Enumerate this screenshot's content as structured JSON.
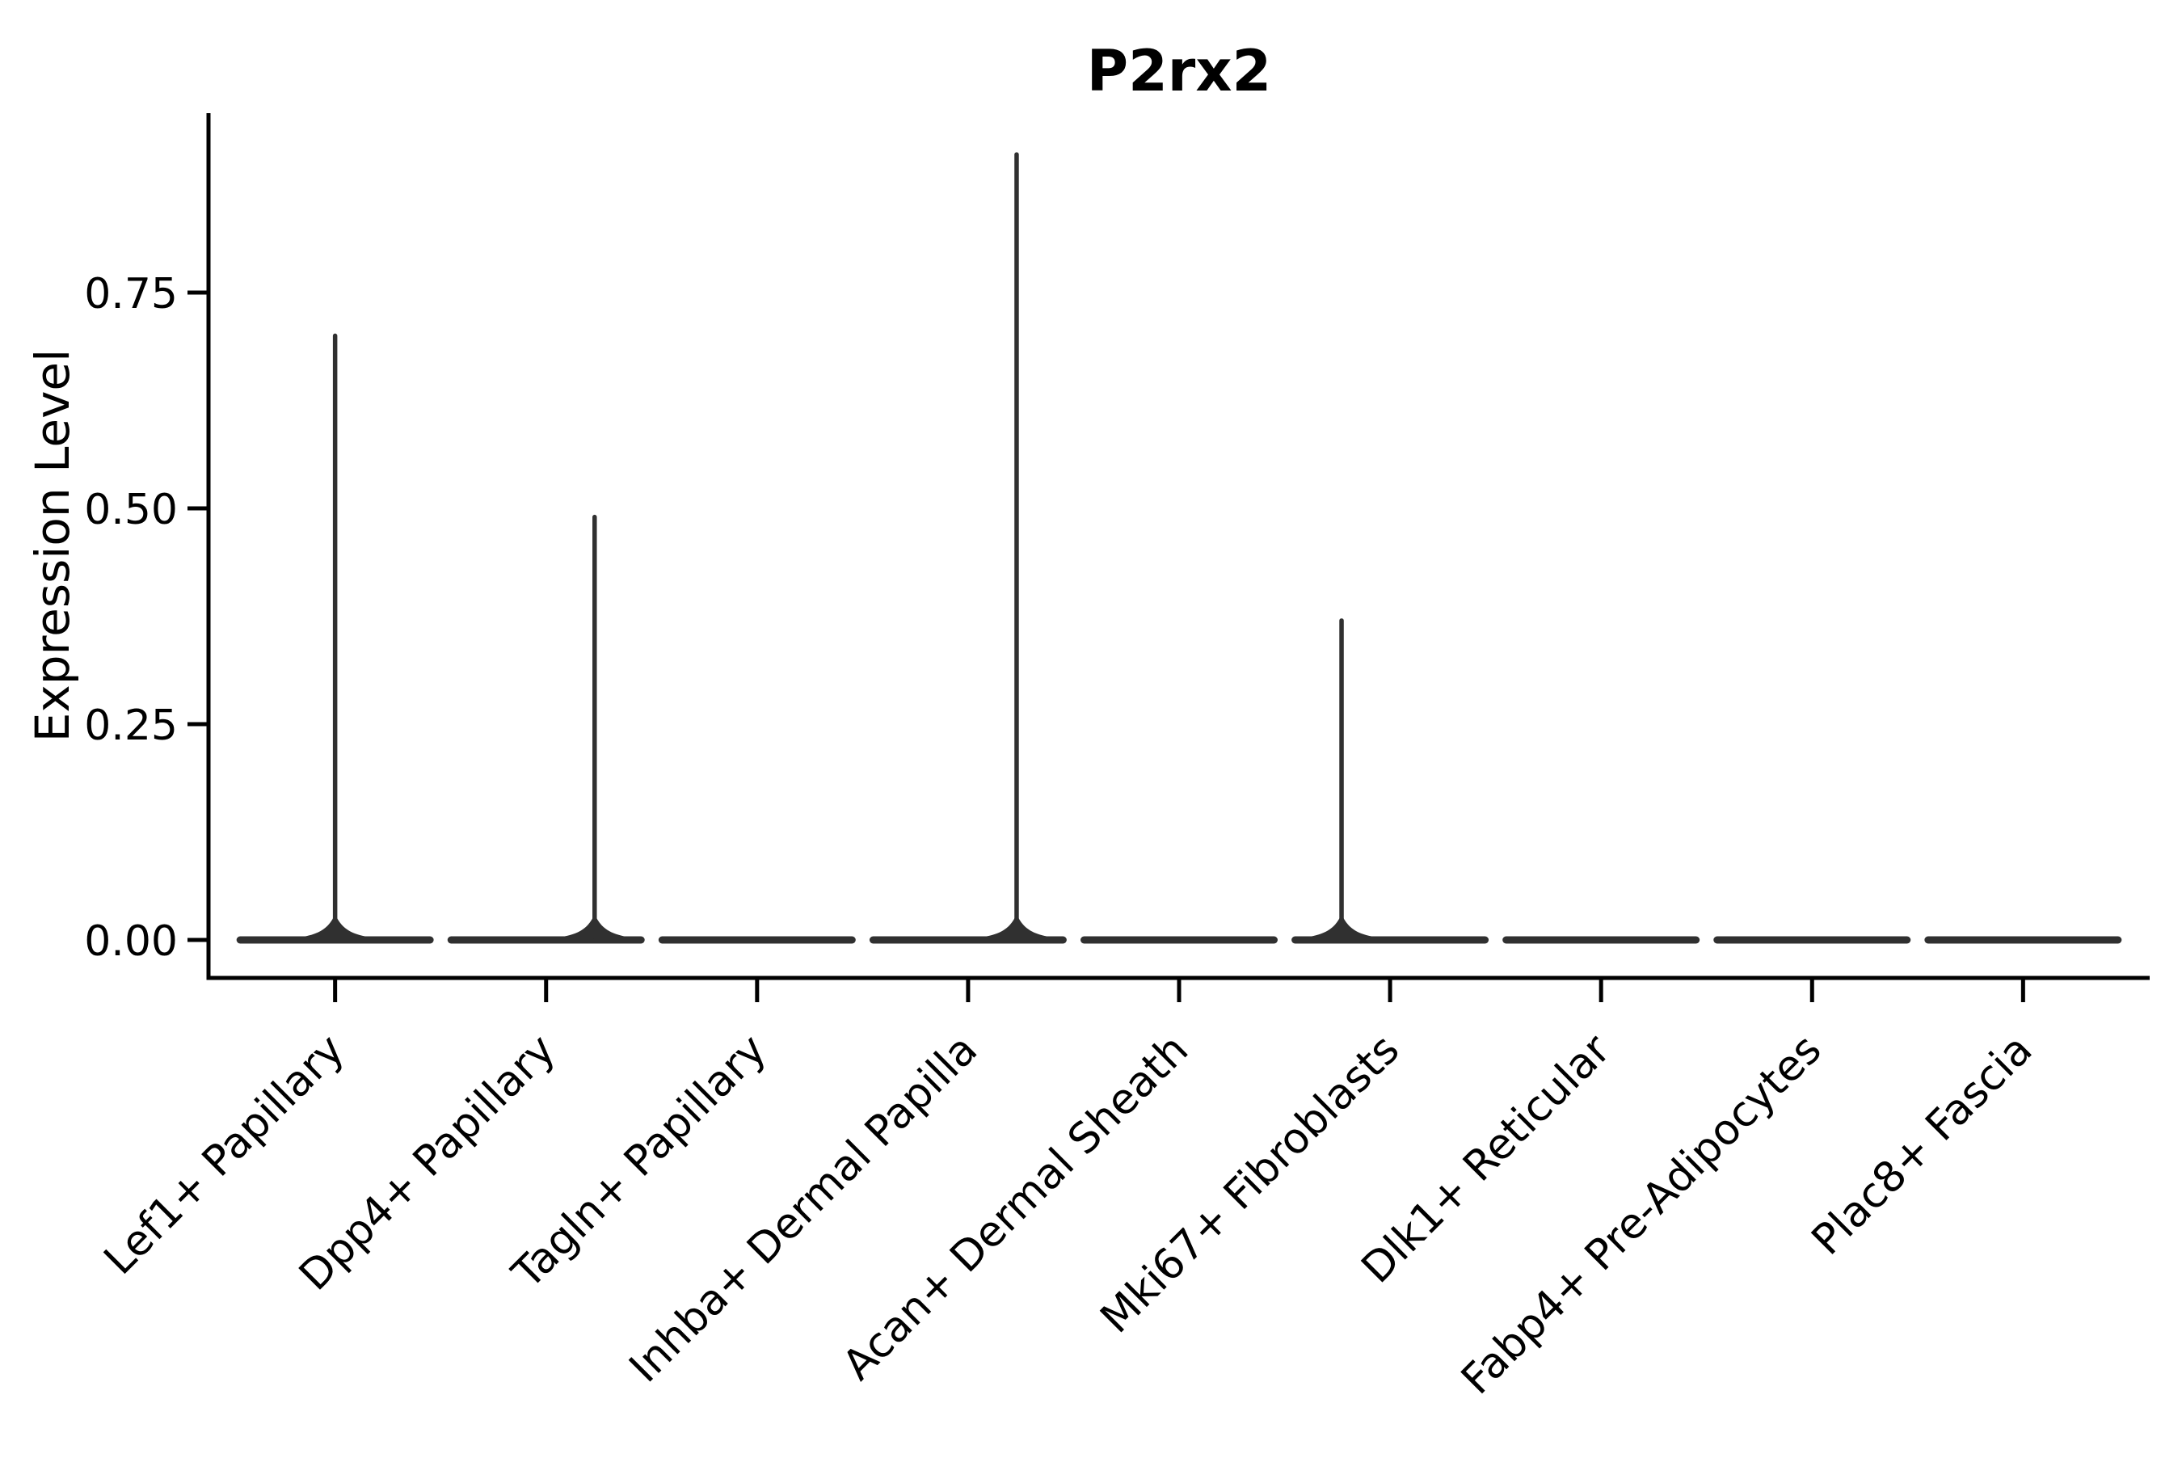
{
  "chart_data": {
    "type": "violin",
    "title": "P2rx2",
    "xlabel": "",
    "ylabel": "Expression Level",
    "ylim": [
      0,
      0.96
    ],
    "grid": false,
    "legend": null,
    "yticks": [
      {
        "value": 0.0,
        "label": "0.00"
      },
      {
        "value": 0.25,
        "label": "0.25"
      },
      {
        "value": 0.5,
        "label": "0.50"
      },
      {
        "value": 0.75,
        "label": "0.75"
      }
    ],
    "categories": [
      "Lef1+ Papillary",
      "Dpp4+ Papillary",
      "Tagln+ Papillary",
      "Inhba+ Dermal Papilla",
      "Acan+ Dermal Sheath",
      "Mki67+ Fibroblasts",
      "Dlk1+ Reticular",
      "Fabp4+ Pre-Adipocytes",
      "Plac8+ Fascia"
    ],
    "violins": [
      {
        "category": "Lef1+ Papillary",
        "baseline_value": 0.0,
        "max_expression": 0.7,
        "spike_offset_frac": 0.0
      },
      {
        "category": "Dpp4+ Papillary",
        "baseline_value": 0.0,
        "max_expression": 0.49,
        "spike_offset_frac": 0.23
      },
      {
        "category": "Tagln+ Papillary",
        "baseline_value": 0.0,
        "max_expression": 0.0,
        "spike_offset_frac": 0.0
      },
      {
        "category": "Inhba+ Dermal Papilla",
        "baseline_value": 0.0,
        "max_expression": 0.91,
        "spike_offset_frac": 0.23
      },
      {
        "category": "Acan+ Dermal Sheath",
        "baseline_value": 0.0,
        "max_expression": 0.0,
        "spike_offset_frac": 0.0
      },
      {
        "category": "Mki67+ Fibroblasts",
        "baseline_value": 0.0,
        "max_expression": 0.37,
        "spike_offset_frac": -0.23
      },
      {
        "category": "Dlk1+ Reticular",
        "baseline_value": 0.0,
        "max_expression": 0.0,
        "spike_offset_frac": 0.0
      },
      {
        "category": "Fabp4+ Pre-Adipocytes",
        "baseline_value": 0.0,
        "max_expression": 0.0,
        "spike_offset_frac": 0.0
      },
      {
        "category": "Plac8+ Fascia",
        "baseline_value": 0.0,
        "max_expression": 0.0,
        "spike_offset_frac": 0.0
      }
    ],
    "colors": {
      "violin": "#303030",
      "axis": "#000000",
      "text": "#000000",
      "background": "#ffffff"
    }
  }
}
